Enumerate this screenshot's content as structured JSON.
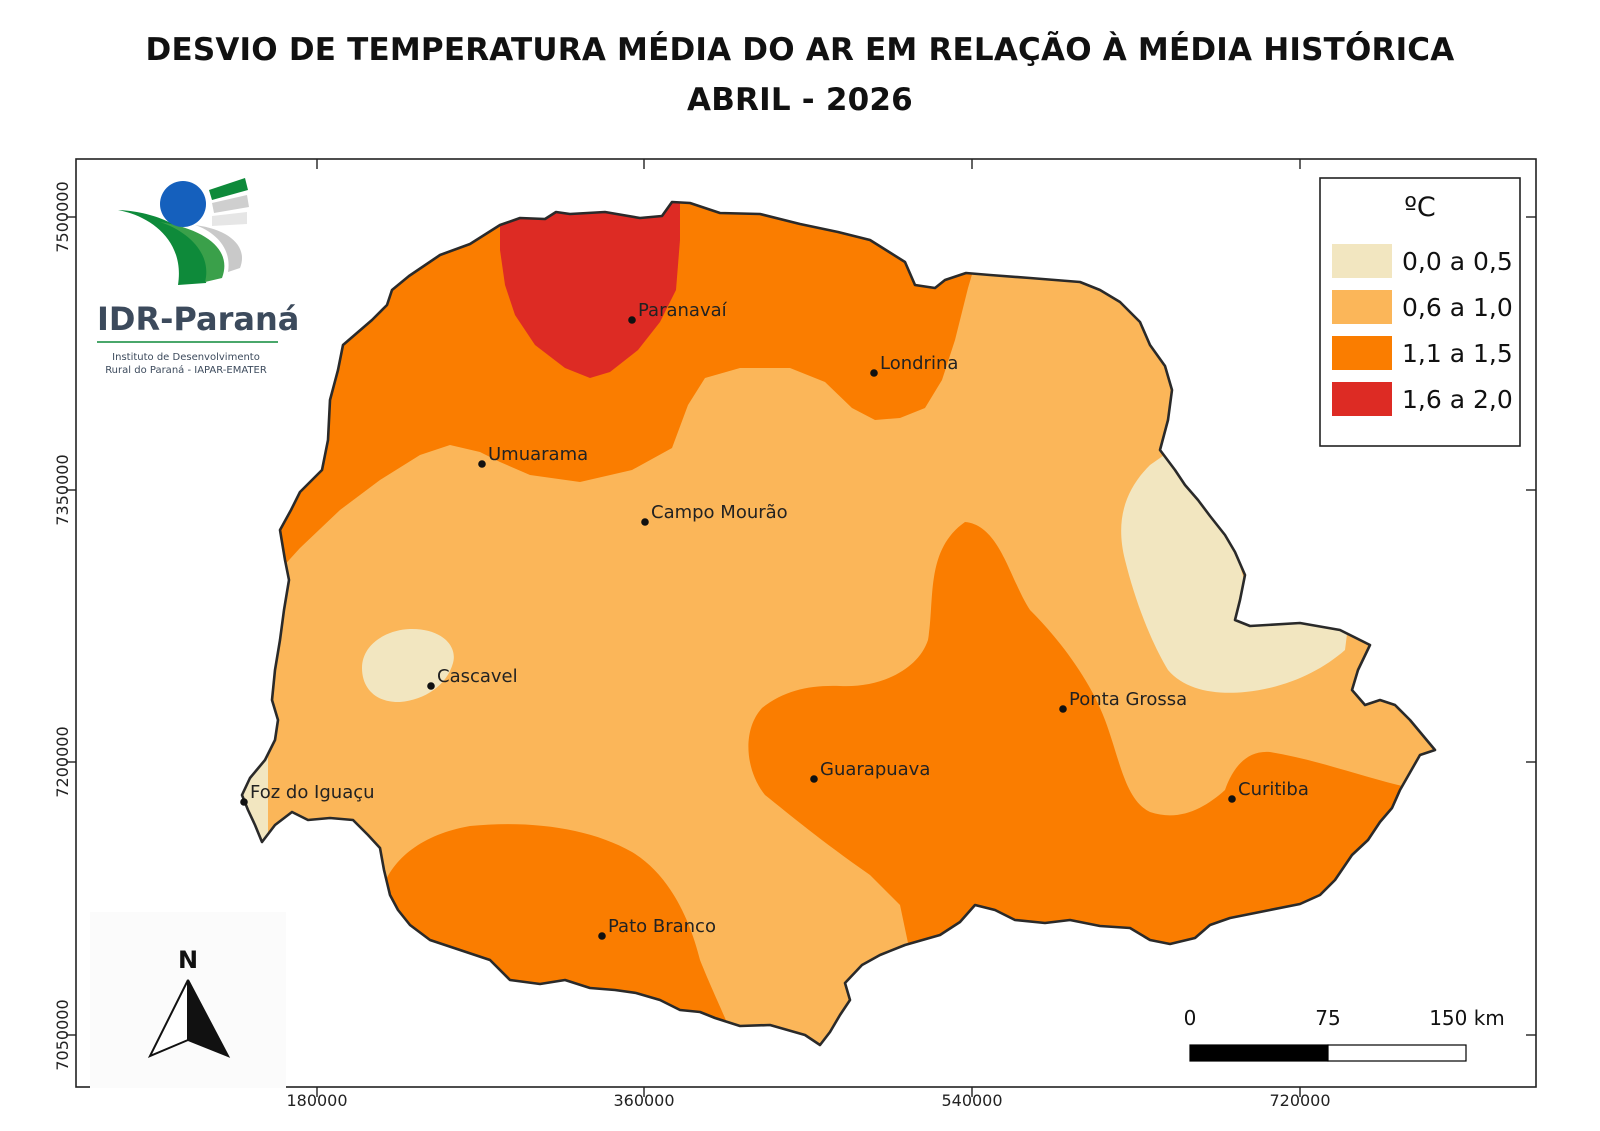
{
  "title": "DESVIO DE TEMPERATURA MÉDIA DO AR EM RELAÇÃO À MÉDIA HISTÓRICA",
  "subtitle": "ABRIL - 2026",
  "logo": {
    "name": "IDR-Paraná",
    "line1": "Instituto de Desenvolvimento",
    "line2": "Rural do Paraná - IAPAR-EMATER"
  },
  "legend": {
    "unit": "ºC",
    "classes": [
      {
        "label": "0,0 a 0,5",
        "color": "#f2e6c0"
      },
      {
        "label": "0,6 a 1,0",
        "color": "#fbb659"
      },
      {
        "label": "1,1 a 1,5",
        "color": "#fa7d00"
      },
      {
        "label": "1,6 a 2,0",
        "color": "#dd2b24"
      }
    ]
  },
  "axes": {
    "x_ticks": [
      "180000",
      "360000",
      "540000",
      "720000"
    ],
    "y_ticks": [
      "7500000",
      "7350000",
      "7200000",
      "7050000"
    ]
  },
  "cities": [
    {
      "name": "Paranavaí"
    },
    {
      "name": "Londrina"
    },
    {
      "name": "Umuarama"
    },
    {
      "name": "Campo Mourão"
    },
    {
      "name": "Cascavel"
    },
    {
      "name": "Ponta Grossa"
    },
    {
      "name": "Guarapuava"
    },
    {
      "name": "Curitiba"
    },
    {
      "name": "Foz do Iguaçu"
    },
    {
      "name": "Pato Branco"
    }
  ],
  "north_arrow": {
    "label": "N",
    "icon": "north-arrow-icon"
  },
  "scale_bar": {
    "labels": [
      "0",
      "75",
      "150 km"
    ]
  }
}
